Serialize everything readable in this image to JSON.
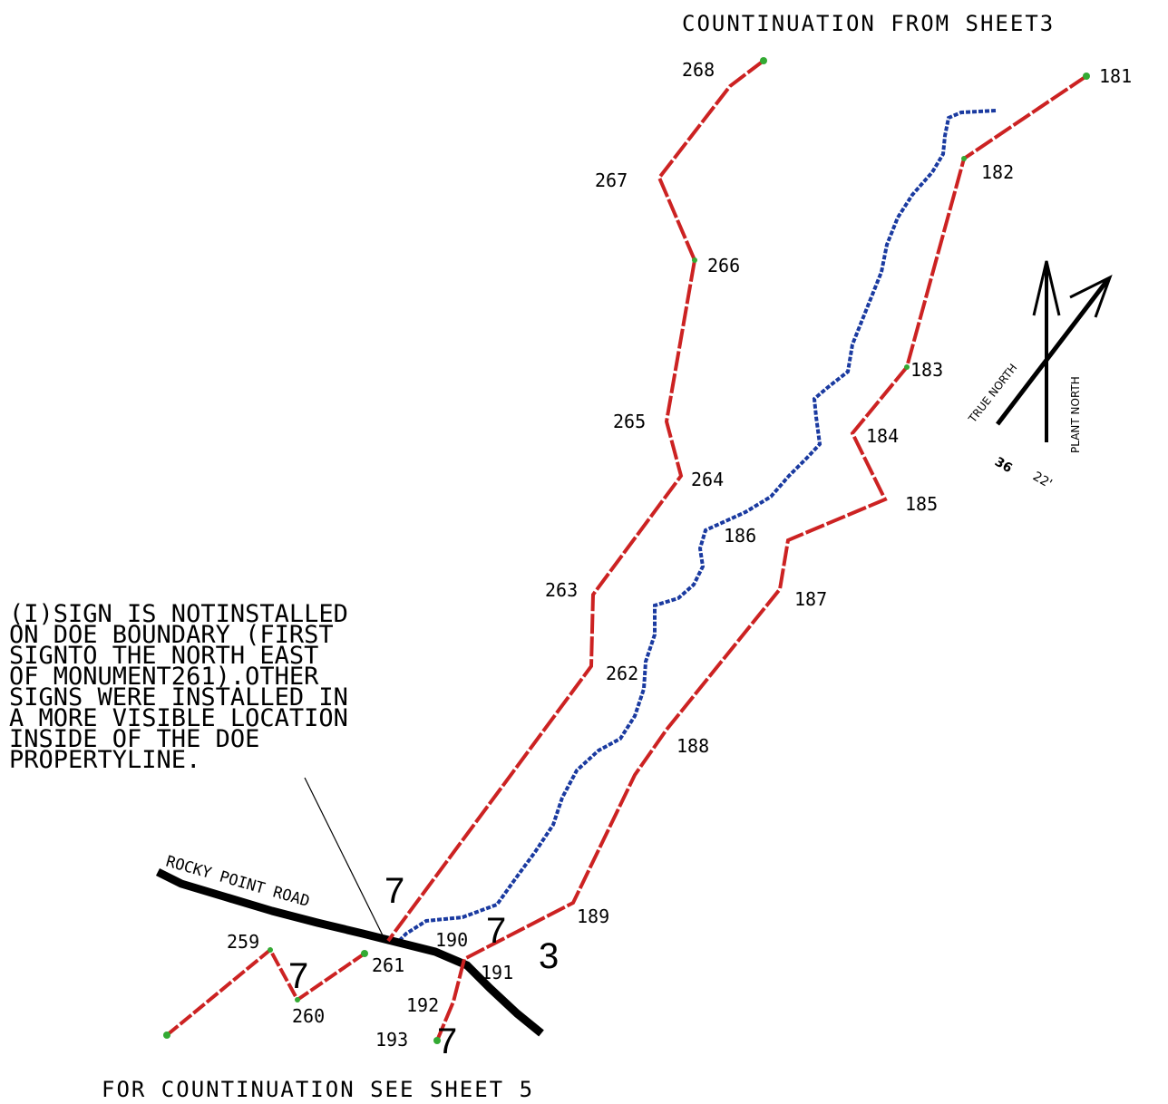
{
  "header_top": "COUNTINUATION FROM SHEET3",
  "footer_bottom": "FOR COUNTINUATION SEE SHEET 5",
  "note_lines": [
    "(I)SIGN IS NOTINSTALLED",
    "ON DOE BOUNDARY (FIRST",
    "SIGNTO THE NORTH EAST",
    "OF MONUMENT261).OTHER",
    "SIGNS WERE INSTALLED IN",
    "A MORE VISIBLE LOCATION",
    "INSIDE OF THE DOE",
    "PROPERTYLINE."
  ],
  "road_label": "ROCKY POINT ROAD",
  "north_arrow": {
    "true_north": "TRUE NORTH",
    "plant_north": "PLANT NORTH",
    "angle_a": "36",
    "angle_b": "22'"
  },
  "monuments": {
    "m181": "181",
    "m182": "182",
    "m183": "183",
    "m184": "184",
    "m185": "185",
    "m186": "186",
    "m187": "187",
    "m188": "188",
    "m189": "189",
    "m190": "190",
    "m191": "191",
    "m192": "192",
    "m193": "193",
    "m259": "259",
    "m260": "260",
    "m261": "261",
    "m262": "262",
    "m263": "263",
    "m264": "264",
    "m265": "265",
    "m266": "266",
    "m267": "267",
    "m268": "268"
  },
  "sign_markers": {
    "s1": "7",
    "s2": "7",
    "s3": "3",
    "s4": "7",
    "s5": "7"
  },
  "colors": {
    "boundary": "#cc2222",
    "creek": "#1a3aa0",
    "road": "#000000",
    "points": "#33aa33"
  }
}
